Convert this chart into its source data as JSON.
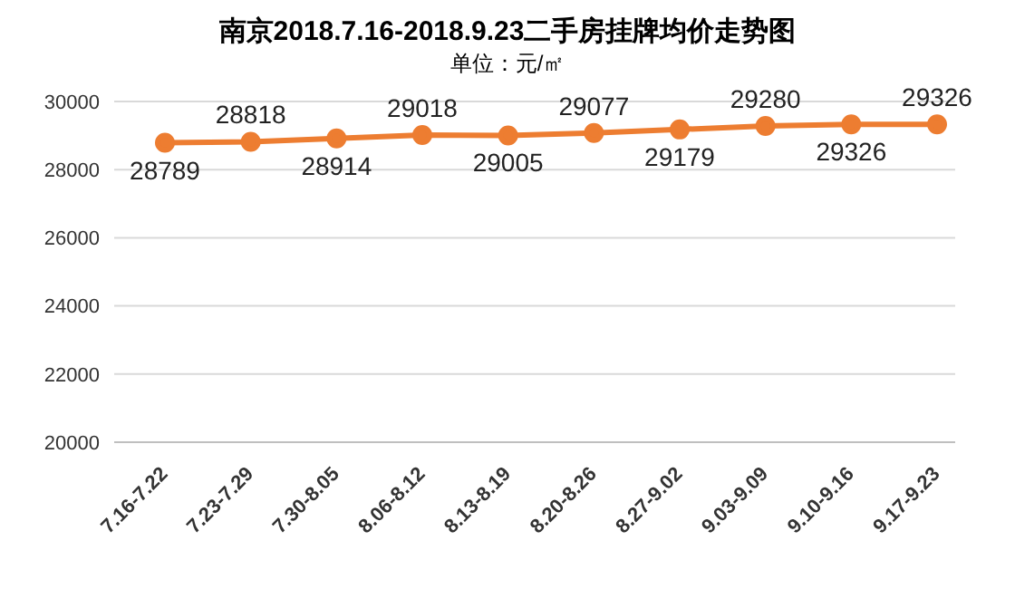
{
  "chart_data": {
    "type": "line",
    "title": "南京2018.7.16-2018.9.23二手房挂牌均价走势图",
    "subtitle": "单位：元/㎡",
    "categories": [
      "7.16-7.22",
      "7.23-7.29",
      "7.30-8.05",
      "8.06-8.12",
      "8.13-8.19",
      "8.20-8.26",
      "8.27-9.02",
      "9.03-9.09",
      "9.10-9.16",
      "9.17-9.23"
    ],
    "series": [
      {
        "color": "#ed7d31",
        "values": [
          28789,
          28818,
          28914,
          29018,
          29005,
          29077,
          29179,
          29280,
          29326,
          29326
        ]
      }
    ],
    "ylim": [
      20000,
      30000
    ],
    "yticks": [
      20000,
      22000,
      24000,
      26000,
      28000,
      30000
    ],
    "grid": "y",
    "marker": "circle",
    "data_labels": true,
    "legend": false
  }
}
